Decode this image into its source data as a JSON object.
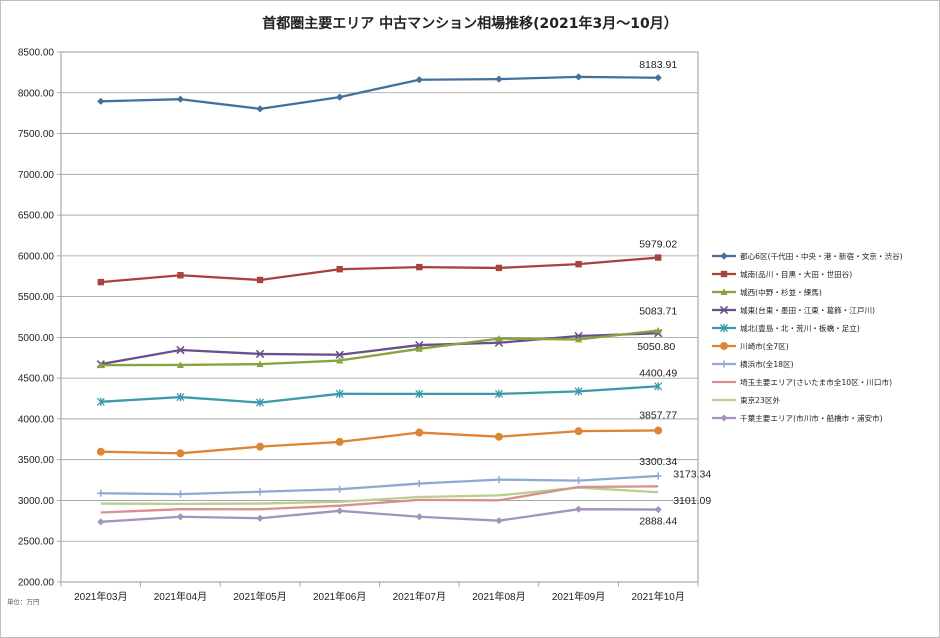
{
  "chart_data": {
    "type": "line",
    "title": "首都圏主要エリア 中古マンション相場推移(2021年3月～10月）",
    "unit_note": "単位：万円",
    "xlabel": "",
    "ylabel": "",
    "ylim": [
      2000,
      8500
    ],
    "y_step": 500,
    "y_tick_labels": [
      "2000.00",
      "2500.00",
      "3000.00",
      "3500.00",
      "4000.00",
      "4500.00",
      "5000.00",
      "5500.00",
      "6000.00",
      "6500.00",
      "7000.00",
      "7500.00",
      "8000.00",
      "8500.00"
    ],
    "categories": [
      "2021年03月",
      "2021年04月",
      "2021年05月",
      "2021年06月",
      "2021年07月",
      "2021年08月",
      "2021年09月",
      "2021年10月"
    ],
    "grid": "horizontal",
    "legend_position": "right",
    "series": [
      {
        "name": "都心6区(千代田・中央・港・新宿・文京・渋谷)",
        "color": "#41719c",
        "marker": "diamond",
        "values": [
          7895,
          7921,
          7803,
          7947,
          8160,
          8167,
          8195,
          8183.91
        ],
        "last_label": "8183.91"
      },
      {
        "name": "城南(品川・目黒・大田・世田谷)",
        "color": "#a9413e",
        "marker": "square",
        "values": [
          5678,
          5762,
          5704,
          5836,
          5862,
          5852,
          5898,
          5979.02
        ],
        "last_label": "5979.02"
      },
      {
        "name": "城西(中野・杉並・練馬)",
        "color": "#86a33d",
        "marker": "triangle",
        "values": [
          4660,
          4662,
          4672,
          4716,
          4860,
          4985,
          4975,
          5083.71
        ],
        "last_label": "5083.71"
      },
      {
        "name": "城東(台東・墨田・江東・葛飾・江戸川)",
        "color": "#6a4f8a",
        "marker": "x",
        "values": [
          4672,
          4845,
          4797,
          4787,
          4906,
          4934,
          5017,
          5050.8
        ],
        "last_label": "5050.80"
      },
      {
        "name": "城北(豊島・北・荒川・板橋・足立)",
        "color": "#3d99ad",
        "marker": "star",
        "values": [
          4210,
          4268,
          4200,
          4308,
          4307,
          4307,
          4338,
          4400.49
        ],
        "last_label": "4400.49"
      },
      {
        "name": "川崎市(全7区)",
        "color": "#dd8537",
        "marker": "circle",
        "values": [
          3598,
          3578,
          3660,
          3718,
          3833,
          3782,
          3850,
          3857.77
        ],
        "last_label": "3857.77"
      },
      {
        "name": "横浜市(全18区)",
        "color": "#8eaad2",
        "marker": "plus",
        "values": [
          3088,
          3078,
          3107,
          3138,
          3207,
          3256,
          3243,
          3300.34
        ],
        "last_label": "3300.34"
      },
      {
        "name": "埼玉主要エリア(さいたま市全10区・川口市)",
        "color": "#d7908d",
        "marker": "none",
        "values": [
          2852,
          2893,
          2892,
          2936,
          3007,
          3002,
          3165,
          3173.34
        ],
        "last_label": "3173.34"
      },
      {
        "name": "東京23区外",
        "color": "#b9cf8c",
        "marker": "none",
        "values": [
          2962,
          2958,
          2962,
          2985,
          3042,
          3062,
          3158,
          3101.09
        ],
        "last_label": "3101.09"
      },
      {
        "name": "千葉主要エリア(市川市・船橋市・浦安市)",
        "color": "#a592bd",
        "marker": "diamond",
        "values": [
          2738,
          2800,
          2782,
          2873,
          2800,
          2752,
          2893,
          2888.44
        ],
        "last_label": "2888.44"
      }
    ]
  }
}
